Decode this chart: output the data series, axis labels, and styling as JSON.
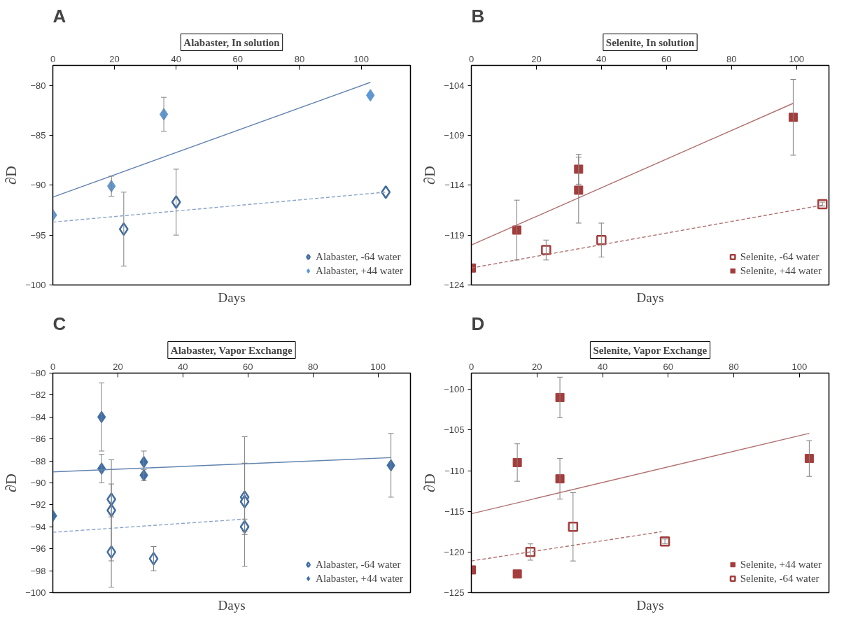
{
  "chart_data": [
    {
      "type": "scatter",
      "title": "Alabaster, In solution",
      "xlabel": "Days",
      "ylabel": "∂D",
      "annotations": [
        "A"
      ],
      "xlim": [
        0,
        116
      ],
      "xticks": [
        0,
        20,
        40,
        60,
        80,
        100
      ],
      "ylim": [
        -100,
        -78
      ],
      "yticks": [
        -100,
        -95,
        -90,
        -85,
        -80
      ],
      "grid": false,
      "legend": "bottom right",
      "series": [
        {
          "name": "Alabaster, -64 water",
          "color": "#3f6b9c",
          "marker": "diamond",
          "colors": [
            "#ffffff",
            "#ffffff",
            "#ffffff"
          ],
          "x": [
            23,
            40,
            108
          ],
          "values": [
            -94.4,
            -91.7,
            -90.7
          ],
          "errors": [
            3.7,
            3.3,
            null
          ]
        },
        {
          "name": "Alabaster, +44 water",
          "color": "#5f97d2",
          "marker": "diamond",
          "x": [
            0,
            19,
            36,
            103
          ],
          "values": [
            -93,
            -90.1,
            -82.9,
            -81
          ],
          "errors": [
            null,
            1,
            1.7,
            null
          ]
        },
        {
          "type": "line",
          "color": "#6283b0",
          "line_style": "solid",
          "x": [
            0,
            103
          ],
          "values": [
            -91.2,
            -79.7
          ]
        },
        {
          "type": "line",
          "color": "#8aa3c8",
          "line_style": "dashed",
          "x": [
            0,
            108
          ],
          "values": [
            -93.7,
            -90.7
          ]
        }
      ]
    },
    {
      "type": "scatter",
      "title": "Selenite, In solution",
      "xlabel": "Days",
      "ylabel": "∂D",
      "annotations": [
        "B"
      ],
      "xlim": [
        0,
        110
      ],
      "xticks": [
        0,
        20,
        40,
        60,
        80,
        100
      ],
      "ylim": [
        -124,
        -102
      ],
      "yticks": [
        -124,
        -119,
        -114,
        -109,
        -104
      ],
      "grid": false,
      "legend": "bottom right",
      "series": [
        {
          "name": "Selenite, -64 water",
          "color": "#a53c3c",
          "marker": "square",
          "colors": [
            "#ffffff",
            "#ffffff",
            "#ffffff"
          ],
          "x": [
            23,
            40,
            108
          ],
          "values": [
            -120.5,
            -119.5,
            -115.9
          ],
          "errors": [
            1,
            1.7,
            0.2
          ]
        },
        {
          "name": "Selenite, +44 water",
          "color": "#a53c3c",
          "marker": "square",
          "x": [
            0,
            14,
            33,
            33,
            99
          ],
          "values": [
            -122.3,
            -118.5,
            -112.4,
            -114.5,
            -107.2
          ],
          "errors": [
            null,
            3,
            1.5,
            3.3,
            3.8
          ]
        },
        {
          "type": "line",
          "color": "#b07070",
          "line_style": "solid",
          "x": [
            0,
            99
          ],
          "values": [
            -120,
            -105.8
          ]
        },
        {
          "type": "line",
          "color": "#b07070",
          "line_style": "dashed",
          "x": [
            0,
            108
          ],
          "values": [
            -122.3,
            -116
          ]
        }
      ]
    },
    {
      "type": "scatter",
      "title": "Alabaster, Vapor Exchange",
      "xlabel": "Days",
      "ylabel": "∂D",
      "annotations": [
        "C"
      ],
      "xlim": [
        0,
        110
      ],
      "xticks": [
        0,
        20,
        40,
        60,
        80,
        100
      ],
      "ylim": [
        -100,
        -80
      ],
      "yticks": [
        -100,
        -98,
        -96,
        -94,
        -92,
        -90,
        -88,
        -86,
        -84,
        -82,
        -80
      ],
      "grid": false,
      "legend": "bottom right",
      "series": [
        {
          "name": "Alabaster, -64 water",
          "color": "#3e6ea8",
          "marker": "diamond",
          "colors": [
            "#ffffff",
            "#ffffff",
            "#ffffff",
            "#ffffff",
            "#ffffff",
            "#ffffff",
            "#ffffff"
          ],
          "x": [
            18,
            18,
            18,
            31,
            59,
            59,
            59
          ],
          "values": [
            -91.5,
            -92.5,
            -96.3,
            -96.9,
            -91.3,
            -91.7,
            -94
          ],
          "errors": [
            1.4,
            4.6,
            3.2,
            1.1,
            3.1,
            5.9,
            0.7
          ]
        },
        {
          "name": "Alabaster, +44 water",
          "color": "#3e6ea8",
          "marker": "diamond",
          "x": [
            0,
            15,
            15,
            28,
            28,
            104
          ],
          "values": [
            -93,
            -84,
            -88.7,
            -88.1,
            -89.3,
            -88.4
          ],
          "errors": [
            null,
            3.1,
            1.3,
            1,
            0.5,
            2.9
          ]
        },
        {
          "type": "line",
          "color": "#6283b0",
          "line_style": "solid",
          "x": [
            0,
            104
          ],
          "values": [
            -89,
            -87.7
          ]
        },
        {
          "type": "line",
          "color": "#8aa3c8",
          "line_style": "dashed",
          "x": [
            0,
            59
          ],
          "values": [
            -94.5,
            -93.3
          ]
        }
      ]
    },
    {
      "type": "scatter",
      "title": "Selenite, Vapor Exchange",
      "xlabel": "Days",
      "ylabel": "∂D",
      "annotations": [
        "D"
      ],
      "xlim": [
        0,
        109
      ],
      "xticks": [
        0,
        20,
        40,
        60,
        80,
        100
      ],
      "ylim": [
        -125,
        -98
      ],
      "yticks": [
        -125,
        -120,
        -115,
        -110,
        -105,
        -100
      ],
      "grid": false,
      "legend": "bottom right",
      "series": [
        {
          "name": "Selenite, +44 water",
          "color": "#a53c3c",
          "marker": "square",
          "x": [
            0,
            14,
            14,
            27,
            27,
            103
          ],
          "values": [
            -122.2,
            -109,
            -122.7,
            -101,
            -111,
            -108.5
          ],
          "errors": [
            null,
            2.3,
            null,
            2.5,
            2.5,
            2.2
          ]
        },
        {
          "name": "Selenite, -64 water",
          "color": "#a53c3c",
          "marker": "square",
          "colors": [
            "#ffffff",
            "#ffffff",
            "#ffffff"
          ],
          "x": [
            18,
            31,
            59
          ],
          "values": [
            -120,
            -116.9,
            -118.7
          ],
          "errors": [
            1,
            4.2,
            0.3
          ]
        },
        {
          "type": "line",
          "color": "#b07070",
          "line_style": "solid",
          "x": [
            0,
            103
          ],
          "values": [
            -115.3,
            -105.4
          ]
        },
        {
          "type": "line",
          "color": "#b07070",
          "line_style": "dashed",
          "x": [
            0,
            58
          ],
          "values": [
            -121.1,
            -117.5
          ]
        }
      ]
    }
  ]
}
